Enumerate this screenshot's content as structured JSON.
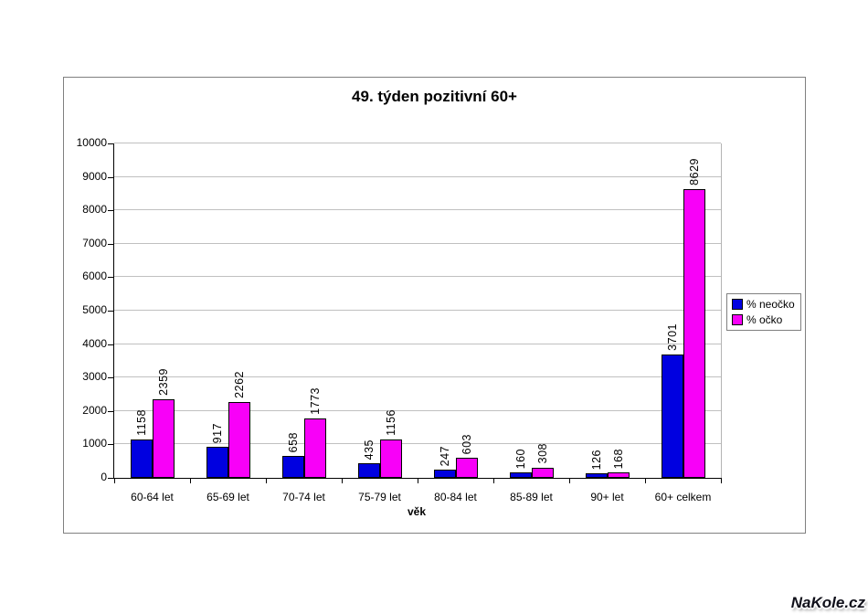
{
  "watermark": {
    "text": "NaKole.cz"
  },
  "chart_data": {
    "type": "bar",
    "title": "49. týden pozitivní 60+",
    "xlabel": "věk",
    "ylabel": "",
    "categories": [
      "60-64 let",
      "65-69 let",
      "70-74 let",
      "75-79 let",
      "80-84 let",
      "85-89 let",
      "90+ let",
      "60+ celkem"
    ],
    "series": [
      {
        "name": "% neočko",
        "color": "#0000E0",
        "values": [
          1158,
          917,
          658,
          435,
          247,
          160,
          126,
          3701
        ]
      },
      {
        "name": "% očko",
        "color": "#F800F8",
        "values": [
          2359,
          2262,
          1773,
          1156,
          603,
          308,
          168,
          8629
        ]
      }
    ],
    "ylim": [
      0,
      10000
    ],
    "y_ticks": [
      0,
      1000,
      2000,
      3000,
      4000,
      5000,
      6000,
      7000,
      8000,
      9000,
      10000
    ],
    "grid": true,
    "legend_position": "right",
    "gridline_color": "#c0c0c0",
    "axis_color": "#000000",
    "frame_border_color": "#808080"
  }
}
